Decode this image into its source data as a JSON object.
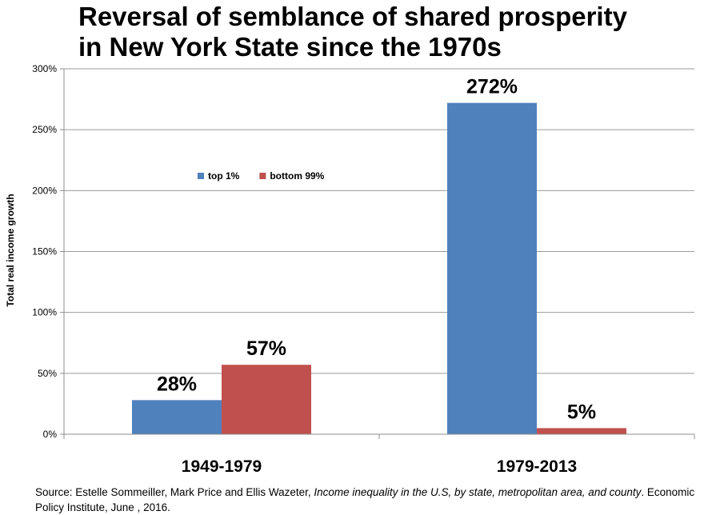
{
  "chart_data": {
    "type": "bar",
    "title_lines": [
      "Reversal of semblance of shared prosperity",
      "in New York State since the 1970s"
    ],
    "ylabel": "Total real income growth",
    "xlabel": "",
    "categories": [
      "1949-1979",
      "1979-2013"
    ],
    "series": [
      {
        "name": "top 1%",
        "color": "#4f81bd",
        "values": [
          28,
          272
        ],
        "labels": [
          "28%",
          "272%"
        ]
      },
      {
        "name": "bottom 99%",
        "color": "#c0504d",
        "values": [
          57,
          5
        ],
        "labels": [
          "57%",
          "5%"
        ]
      }
    ],
    "ylim": [
      0,
      300
    ],
    "yticks": [
      0,
      50,
      100,
      150,
      200,
      250,
      300
    ],
    "ytick_labels": [
      "0%",
      "50%",
      "100%",
      "150%",
      "200%",
      "250%",
      "300%"
    ],
    "grid": true,
    "legend_position": "upper-left inside plot"
  },
  "source": {
    "prefix": "Source: Estelle Sommeiller, Mark Price and Ellis Wazeter, ",
    "italic": "Income inequality in the U.S, by state, metropolitan area, and county",
    "suffix": ". Economic Policy Institute, June , 2016."
  }
}
